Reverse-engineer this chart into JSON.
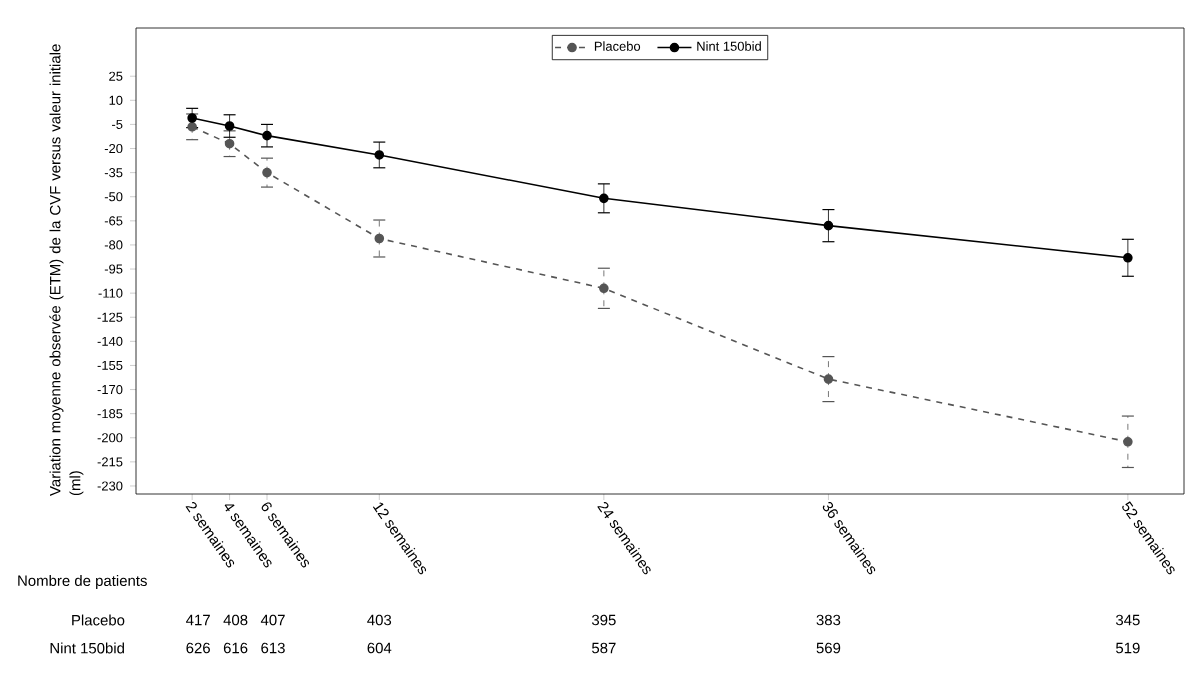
{
  "chart_data": {
    "type": "line",
    "ylabel": "Variation moyenne observée (ETM) de la CVF versus valeur initiale (ml)",
    "x": [
      2,
      4,
      6,
      12,
      24,
      36,
      52
    ],
    "xlim": [
      -1,
      55
    ],
    "ylim": [
      -235,
      55
    ],
    "xticks": [
      {
        "value": 2,
        "label": "2 semaines"
      },
      {
        "value": 4,
        "label": "4 semaines"
      },
      {
        "value": 6,
        "label": "6 semaines"
      },
      {
        "value": 12,
        "label": "12 semaines"
      },
      {
        "value": 24,
        "label": "24 semaines"
      },
      {
        "value": 36,
        "label": "36 semaines"
      },
      {
        "value": 52,
        "label": "52 semaines"
      }
    ],
    "yticks": [
      25,
      10,
      -5,
      -20,
      -35,
      -50,
      -65,
      -80,
      -95,
      -110,
      -125,
      -140,
      -155,
      -170,
      -185,
      -200,
      -215,
      -230
    ],
    "marker": "circle",
    "legend": "top",
    "series": [
      {
        "name": "Placebo",
        "color": "#555555",
        "line_style": "dashed",
        "values": [
          -6.5,
          -17,
          -35,
          -76,
          -107,
          -163.5,
          -202.5
        ],
        "errors": [
          8,
          8,
          9,
          11.5,
          12.5,
          14,
          16
        ]
      },
      {
        "name": "Nint 150bid",
        "color": "#000000",
        "line_style": "solid",
        "values": [
          -1,
          -6,
          -12,
          -24,
          -51,
          -68,
          -88
        ],
        "errors": [
          6,
          7,
          7,
          8,
          9,
          10,
          11.5
        ]
      }
    ],
    "annotations": [
      "Nombre de patients",
      "Placebo",
      "417",
      "408",
      "407",
      "403",
      "395",
      "383",
      "345",
      "Nint 150bid",
      "626",
      "616",
      "613",
      "604",
      "587",
      "569",
      "519"
    ]
  }
}
